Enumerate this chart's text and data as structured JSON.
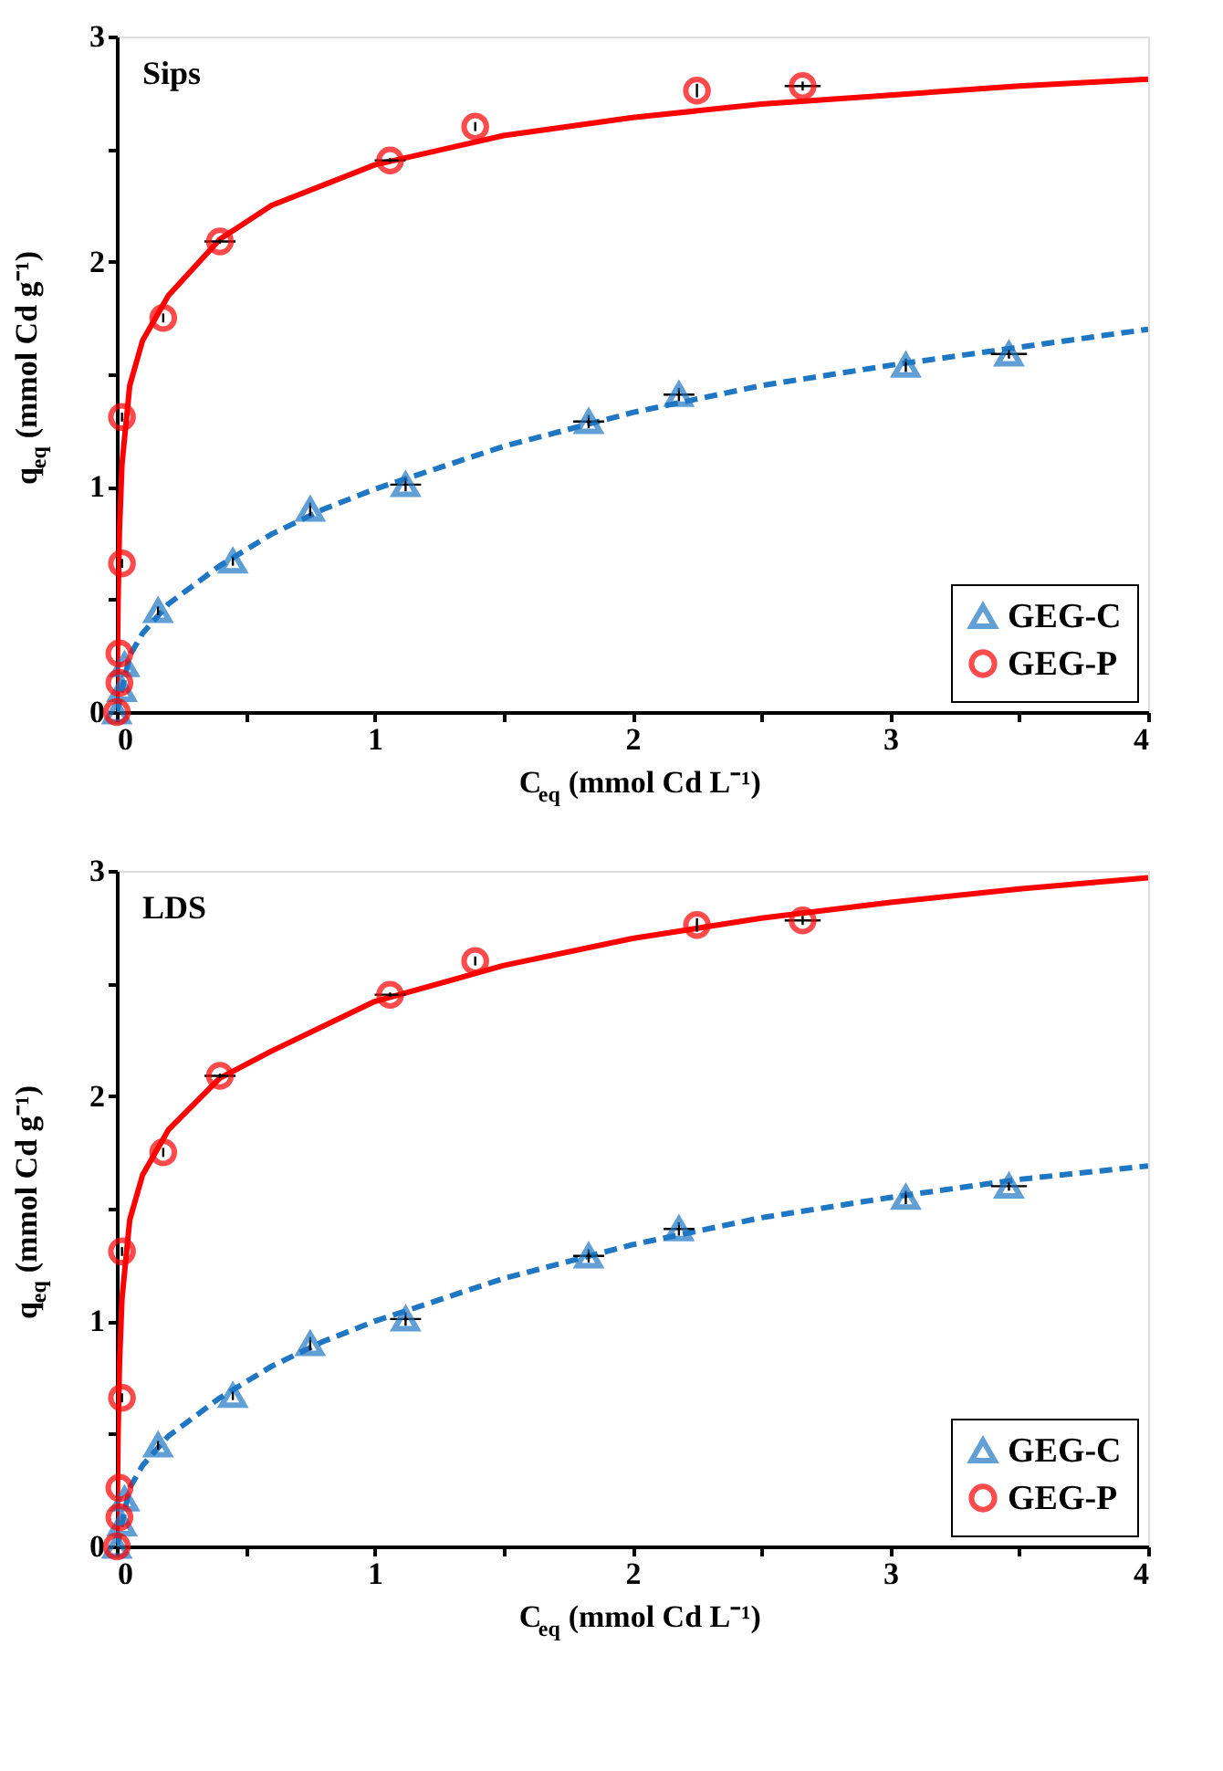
{
  "chart_data": [
    {
      "type": "scatter",
      "title": "Sips",
      "xlabel": "C$_{eq}$ (mmol Cd L⁻¹)",
      "ylabel": "q$_{eq}$ (mmol Cd g⁻¹)",
      "xlim": [
        0,
        4
      ],
      "ylim": [
        0,
        3
      ],
      "xticks": [
        0,
        {
          "value": 0.5,
          "label": null
        },
        1,
        {
          "value": 1.5,
          "label": null
        },
        2,
        {
          "value": 2.5,
          "label": null
        },
        3,
        {
          "value": 3.5,
          "label": null
        },
        4
      ],
      "yticks": [
        0,
        {
          "value": 0.5,
          "label": null
        },
        1,
        {
          "value": 1.5,
          "label": null
        },
        2,
        {
          "value": 2.5,
          "label": null
        },
        3
      ],
      "legend": "bottom right",
      "series": [
        {
          "type": "line",
          "color": "#ff0000",
          "line_style": "solid",
          "x": [
            0,
            0.005,
            0.01,
            0.02,
            0.05,
            0.1,
            0.2,
            0.4,
            0.6,
            1,
            1.5,
            2,
            2.5,
            3,
            3.5,
            4
          ],
          "values": [
            0,
            0.5,
            0.8,
            1.1,
            1.45,
            1.65,
            1.85,
            2.1,
            2.25,
            2.43,
            2.56,
            2.64,
            2.7,
            2.74,
            2.78,
            2.81
          ]
        },
        {
          "type": "line",
          "color": "#1f77c4",
          "line_style": "dashed",
          "x": [
            0,
            0.05,
            0.1,
            0.2,
            0.4,
            0.6,
            0.8,
            1,
            1.5,
            2,
            2.5,
            3,
            3.5,
            4
          ],
          "values": [
            0,
            0.25,
            0.35,
            0.48,
            0.65,
            0.79,
            0.9,
            0.99,
            1.18,
            1.33,
            1.45,
            1.54,
            1.62,
            1.7
          ]
        },
        {
          "name": "GEG-C",
          "color": "#1f77c4",
          "marker": "triangle",
          "x": [
            0,
            0.02,
            0.03,
            0.16,
            0.45,
            0.75,
            1.12,
            1.83,
            2.18,
            3.06,
            3.46
          ],
          "values": [
            0,
            0.1,
            0.21,
            0.45,
            0.67,
            0.9,
            1.01,
            1.29,
            1.41,
            1.54,
            1.59
          ],
          "errors": [
            null,
            null,
            null,
            0.02,
            0.02,
            0.03,
            0.03,
            0.03,
            0.03,
            0.03,
            0.02
          ],
          "xerrors": [
            null,
            null,
            null,
            null,
            null,
            null,
            0.06,
            0.06,
            0.06,
            null,
            0.07
          ]
        },
        {
          "name": "GEG-P",
          "color": "#ff0000",
          "marker": "circle",
          "x": [
            0,
            0.01,
            0.01,
            0.02,
            0.02,
            0.18,
            0.4,
            1.06,
            1.39,
            2.25,
            2.66
          ],
          "values": [
            0,
            0.13,
            0.26,
            0.66,
            1.31,
            1.75,
            2.09,
            2.45,
            2.6,
            2.76,
            2.78
          ],
          "errors": [
            null,
            null,
            null,
            0.02,
            0.02,
            0.02,
            0.01,
            0.01,
            0.02,
            0.03,
            0.02
          ],
          "xerrors": [
            null,
            null,
            null,
            null,
            null,
            null,
            0.06,
            0.06,
            null,
            null,
            0.07
          ]
        }
      ]
    },
    {
      "type": "scatter",
      "title": "LDS",
      "xlabel": "C$_{eq}$ (mmol Cd L⁻¹)",
      "ylabel": "q$_{eq}$ (mmol Cd g⁻¹)",
      "xlim": [
        0,
        4
      ],
      "ylim": [
        0,
        3
      ],
      "xticks": [
        0,
        {
          "value": 0.5,
          "label": null
        },
        1,
        {
          "value": 1.5,
          "label": null
        },
        2,
        {
          "value": 2.5,
          "label": null
        },
        3,
        {
          "value": 3.5,
          "label": null
        },
        4
      ],
      "yticks": [
        0,
        {
          "value": 0.5,
          "label": null
        },
        1,
        {
          "value": 1.5,
          "label": null
        },
        2,
        {
          "value": 2.5,
          "label": null
        },
        3
      ],
      "legend": "bottom right",
      "series": [
        {
          "type": "line",
          "color": "#ff0000",
          "line_style": "solid",
          "x": [
            0,
            0.005,
            0.01,
            0.02,
            0.05,
            0.1,
            0.2,
            0.4,
            0.6,
            1,
            1.5,
            2,
            2.5,
            3,
            3.5,
            4
          ],
          "values": [
            0,
            0.5,
            0.8,
            1.1,
            1.45,
            1.65,
            1.85,
            2.08,
            2.2,
            2.42,
            2.58,
            2.7,
            2.79,
            2.86,
            2.92,
            2.97
          ]
        },
        {
          "type": "line",
          "color": "#1f77c4",
          "line_style": "dashed",
          "x": [
            0,
            0.05,
            0.1,
            0.2,
            0.4,
            0.6,
            0.8,
            1,
            1.5,
            2,
            2.5,
            3,
            3.5,
            4
          ],
          "values": [
            0,
            0.26,
            0.36,
            0.49,
            0.66,
            0.8,
            0.91,
            1.0,
            1.19,
            1.34,
            1.46,
            1.55,
            1.63,
            1.69
          ]
        },
        {
          "name": "GEG-C",
          "color": "#1f77c4",
          "marker": "triangle",
          "x": [
            0,
            0.02,
            0.03,
            0.16,
            0.45,
            0.75,
            1.12,
            1.83,
            2.18,
            3.06,
            3.46
          ],
          "values": [
            0,
            0.1,
            0.21,
            0.45,
            0.67,
            0.9,
            1.01,
            1.29,
            1.41,
            1.55,
            1.6
          ],
          "errors": [
            null,
            null,
            null,
            0.02,
            0.02,
            0.03,
            0.03,
            0.03,
            0.03,
            0.03,
            0.02
          ],
          "xerrors": [
            null,
            null,
            null,
            null,
            null,
            null,
            0.06,
            0.06,
            0.06,
            null,
            0.07
          ]
        },
        {
          "name": "GEG-P",
          "color": "#ff0000",
          "marker": "circle",
          "x": [
            0,
            0.01,
            0.01,
            0.02,
            0.02,
            0.18,
            0.4,
            1.06,
            1.39,
            2.25,
            2.66
          ],
          "values": [
            0,
            0.13,
            0.26,
            0.66,
            1.31,
            1.75,
            2.09,
            2.45,
            2.6,
            2.76,
            2.78
          ],
          "errors": [
            null,
            null,
            null,
            0.02,
            0.02,
            0.02,
            0.01,
            0.01,
            0.02,
            0.03,
            0.02
          ],
          "xerrors": [
            null,
            null,
            null,
            null,
            null,
            null,
            0.06,
            0.06,
            null,
            null,
            0.07
          ]
        }
      ]
    }
  ]
}
